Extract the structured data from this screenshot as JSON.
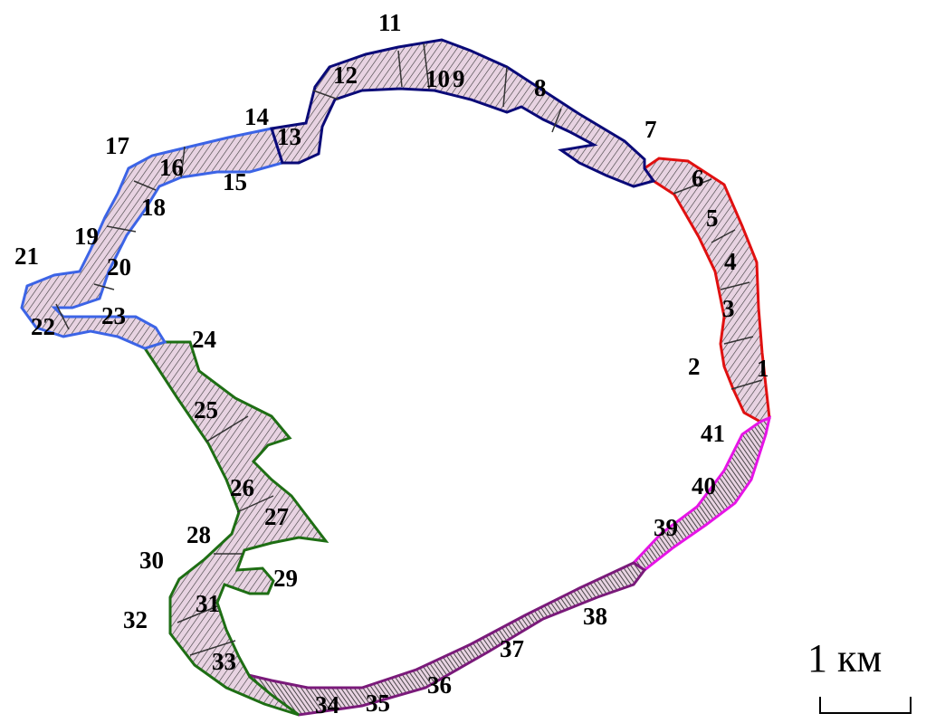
{
  "map": {
    "segments": [
      {
        "id": "1",
        "label": "1",
        "zone": "red"
      },
      {
        "id": "2",
        "label": "2",
        "zone": "red"
      },
      {
        "id": "3",
        "label": "3",
        "zone": "red"
      },
      {
        "id": "4",
        "label": "4",
        "zone": "red"
      },
      {
        "id": "5",
        "label": "5",
        "zone": "red"
      },
      {
        "id": "6",
        "label": "6",
        "zone": "red"
      },
      {
        "id": "7",
        "label": "7",
        "zone": "navy"
      },
      {
        "id": "8",
        "label": "8",
        "zone": "navy"
      },
      {
        "id": "9",
        "label": "9",
        "zone": "navy"
      },
      {
        "id": "10",
        "label": "10",
        "zone": "navy"
      },
      {
        "id": "11",
        "label": "11",
        "zone": "navy"
      },
      {
        "id": "12",
        "label": "12",
        "zone": "navy"
      },
      {
        "id": "13",
        "label": "13",
        "zone": "navy"
      },
      {
        "id": "14",
        "label": "14",
        "zone": "navy"
      },
      {
        "id": "15",
        "label": "15",
        "zone": "blue"
      },
      {
        "id": "16",
        "label": "16",
        "zone": "blue"
      },
      {
        "id": "17",
        "label": "17",
        "zone": "blue"
      },
      {
        "id": "18",
        "label": "18",
        "zone": "blue"
      },
      {
        "id": "19",
        "label": "19",
        "zone": "blue"
      },
      {
        "id": "20",
        "label": "20",
        "zone": "blue"
      },
      {
        "id": "21",
        "label": "21",
        "zone": "blue"
      },
      {
        "id": "22",
        "label": "22",
        "zone": "blue"
      },
      {
        "id": "23",
        "label": "23",
        "zone": "blue"
      },
      {
        "id": "24",
        "label": "24",
        "zone": "green"
      },
      {
        "id": "25",
        "label": "25",
        "zone": "green"
      },
      {
        "id": "26",
        "label": "26",
        "zone": "green"
      },
      {
        "id": "27",
        "label": "27",
        "zone": "green"
      },
      {
        "id": "28",
        "label": "28",
        "zone": "green"
      },
      {
        "id": "29",
        "label": "29",
        "zone": "green"
      },
      {
        "id": "30",
        "label": "30",
        "zone": "green"
      },
      {
        "id": "31",
        "label": "31",
        "zone": "green"
      },
      {
        "id": "32",
        "label": "32",
        "zone": "green"
      },
      {
        "id": "33",
        "label": "33",
        "zone": "green"
      },
      {
        "id": "34",
        "label": "34",
        "zone": "purple"
      },
      {
        "id": "35",
        "label": "35",
        "zone": "purple"
      },
      {
        "id": "36",
        "label": "36",
        "zone": "purple"
      },
      {
        "id": "37",
        "label": "37",
        "zone": "purple"
      },
      {
        "id": "38",
        "label": "38",
        "zone": "purple"
      },
      {
        "id": "39",
        "label": "39",
        "zone": "magenta"
      },
      {
        "id": "40",
        "label": "40",
        "zone": "magenta"
      },
      {
        "id": "41",
        "label": "41",
        "zone": "magenta"
      }
    ],
    "zone_colors": {
      "red": "#e01010",
      "navy": "#0a0a78",
      "blue": "#3c64e6",
      "green": "#1e6e14",
      "purple": "#7a1a7a",
      "magenta": "#e614e6"
    },
    "fill_color": "#e6cfe0",
    "scale": {
      "label": "1 км"
    }
  }
}
